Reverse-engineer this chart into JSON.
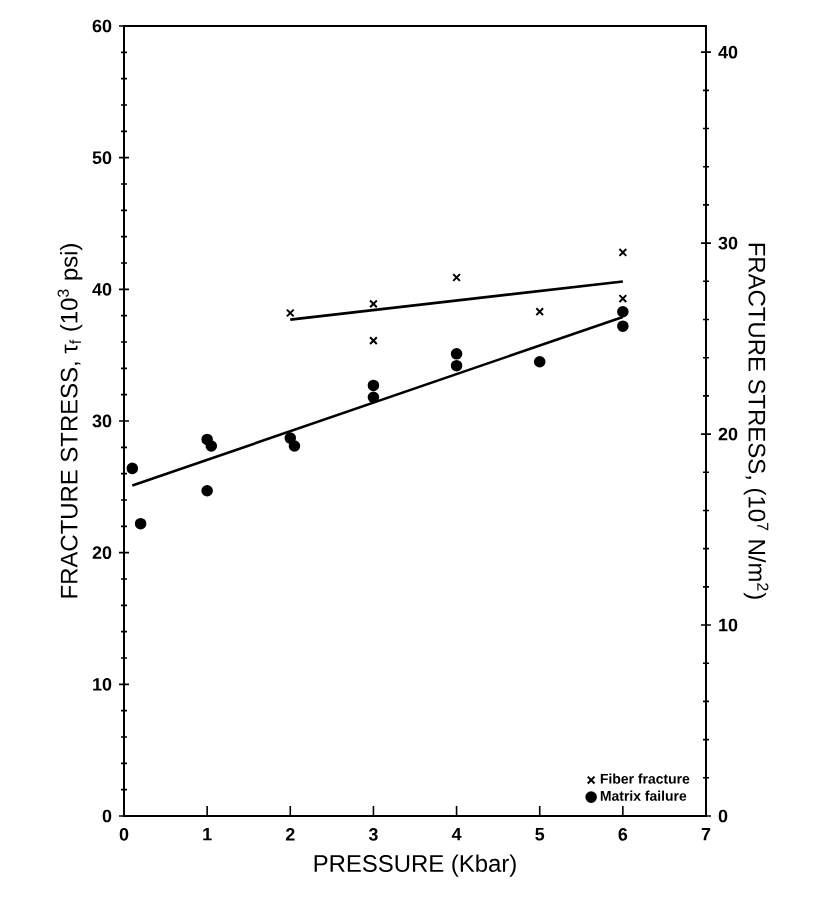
{
  "chart_data": {
    "type": "scatter",
    "xlabel": "PRESSURE  (Kbar)",
    "ylabel": "FRACTURE STRESS, τ$_{f}$ (10$^{3}$ psi)",
    "y2label": "FRACTURE STRESS, (10$^{7}$ N/m$^{2}$)",
    "xlim": [
      0,
      7
    ],
    "xticks": [
      0,
      1,
      2,
      3,
      4,
      5,
      6,
      7
    ],
    "ylim": [
      0,
      60
    ],
    "yticks": [
      0,
      10,
      20,
      30,
      40,
      50,
      60
    ],
    "y2lim": [
      0,
      41.37
    ],
    "y2ticks": [
      0,
      10,
      20,
      30,
      40
    ],
    "legend": "bottom right",
    "grid": false,
    "series": [
      {
        "name": "Fiber fracture",
        "marker": "cross",
        "color": "#000000",
        "x": [
          2,
          3,
          3,
          4,
          5,
          6,
          6
        ],
        "values": [
          38.2,
          38.9,
          36.1,
          40.9,
          38.3,
          42.8,
          39.3
        ]
      },
      {
        "name": "Matrix failure",
        "marker": "circle",
        "color": "#000000",
        "x": [
          0.1,
          0.2,
          1,
          1.05,
          1,
          2,
          2.05,
          3,
          3,
          4,
          4,
          5,
          6,
          6
        ],
        "values": [
          26.4,
          22.2,
          28.6,
          28.1,
          24.7,
          28.7,
          28.1,
          32.7,
          31.8,
          35.1,
          34.2,
          34.5,
          38.3,
          37.2
        ]
      },
      {
        "type": "line",
        "marker": "none",
        "line_style": "solid",
        "color": "#000000",
        "x": [
          2,
          6
        ],
        "values": [
          37.7,
          40.6
        ]
      },
      {
        "type": "line",
        "marker": "none",
        "line_style": "solid",
        "color": "#000000",
        "x": [
          0.1,
          6
        ],
        "values": [
          25.1,
          37.9
        ]
      }
    ]
  }
}
